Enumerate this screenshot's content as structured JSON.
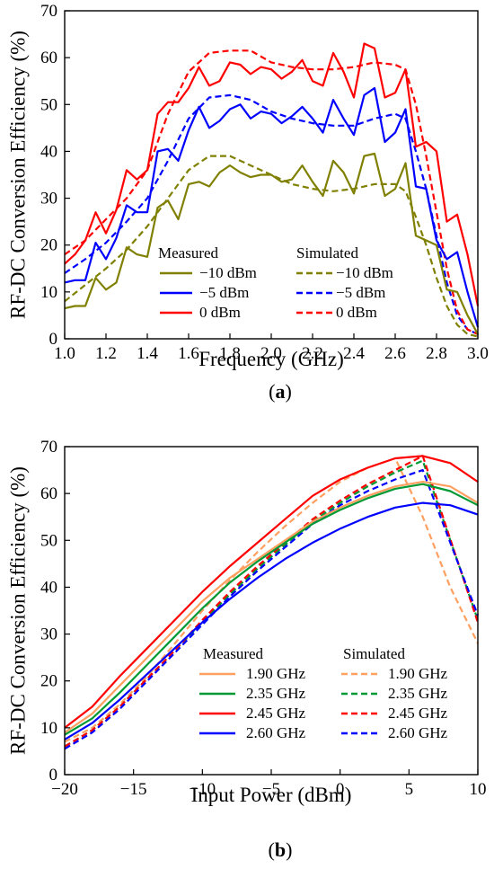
{
  "chart_data": [
    {
      "type": "line",
      "panel_label": "(a)",
      "panel_letter": "a",
      "xlabel": "Frequency  (GHz)",
      "ylabel": "RF-DC Conversion Efficiency (%)",
      "xlim": [
        1.0,
        3.0
      ],
      "ylim": [
        0,
        70
      ],
      "xticks": [
        1.0,
        1.2,
        1.4,
        1.6,
        1.8,
        2.0,
        2.2,
        2.4,
        2.6,
        2.8,
        3.0
      ],
      "xtick_labels": [
        "1.0",
        "1.2",
        "1.4",
        "1.6",
        "1.8",
        "2.0",
        "2.2",
        "2.4",
        "2.6",
        "2.8",
        "3.0"
      ],
      "yticks": [
        0,
        10,
        20,
        30,
        40,
        50,
        60,
        70
      ],
      "ytick_labels": [
        "0",
        "10",
        "20",
        "30",
        "40",
        "50",
        "60",
        "70"
      ],
      "grid": false,
      "legend_position": "lower-center",
      "legend_headers": [
        "Measured",
        "Simulated"
      ],
      "series": [
        {
          "name": "−10 dBm",
          "group": "measured",
          "color": "#808000",
          "dash": false,
          "x": [
            1.0,
            1.05,
            1.1,
            1.15,
            1.2,
            1.25,
            1.3,
            1.35,
            1.4,
            1.45,
            1.5,
            1.55,
            1.6,
            1.65,
            1.7,
            1.75,
            1.8,
            1.85,
            1.9,
            1.95,
            2.0,
            2.05,
            2.1,
            2.15,
            2.2,
            2.25,
            2.3,
            2.35,
            2.4,
            2.45,
            2.5,
            2.55,
            2.6,
            2.65,
            2.7,
            2.75,
            2.8,
            2.85,
            2.9,
            2.95,
            3.0
          ],
          "y": [
            6.5,
            7,
            7,
            13,
            10.5,
            12,
            19.5,
            18,
            17.5,
            28,
            29.5,
            25.5,
            33,
            33.5,
            32.5,
            35.5,
            37,
            35.5,
            34.5,
            35,
            35,
            33.5,
            34,
            37,
            33.5,
            30.5,
            38,
            35.5,
            31,
            39,
            39.5,
            30.5,
            32,
            37.5,
            22,
            21,
            20,
            10.5,
            10,
            5,
            1
          ]
        },
        {
          "name": "−5 dBm",
          "group": "measured",
          "color": "#0000ff",
          "dash": false,
          "x": [
            1.0,
            1.05,
            1.1,
            1.15,
            1.2,
            1.25,
            1.3,
            1.35,
            1.4,
            1.45,
            1.5,
            1.55,
            1.6,
            1.65,
            1.7,
            1.75,
            1.8,
            1.85,
            1.9,
            1.95,
            2.0,
            2.05,
            2.1,
            2.15,
            2.2,
            2.25,
            2.3,
            2.35,
            2.4,
            2.45,
            2.5,
            2.55,
            2.6,
            2.65,
            2.7,
            2.75,
            2.8,
            2.85,
            2.9,
            2.95,
            3.0
          ],
          "y": [
            12,
            12.5,
            12.5,
            20.5,
            17,
            21.5,
            28.5,
            27,
            27,
            40,
            40.5,
            38,
            44.5,
            49.5,
            45,
            46.5,
            49,
            50,
            47,
            48.5,
            48,
            46,
            47.5,
            49.5,
            47,
            44,
            51,
            47,
            43.5,
            52,
            53.5,
            42,
            44,
            49,
            32.5,
            32,
            21,
            17,
            18.5,
            10,
            2.5
          ]
        },
        {
          "name": "0 dBm",
          "group": "measured",
          "color": "#ff0000",
          "dash": false,
          "x": [
            1.0,
            1.05,
            1.1,
            1.15,
            1.2,
            1.25,
            1.3,
            1.35,
            1.4,
            1.45,
            1.5,
            1.55,
            1.6,
            1.65,
            1.7,
            1.75,
            1.8,
            1.85,
            1.9,
            1.95,
            2.0,
            2.05,
            2.1,
            2.15,
            2.2,
            2.25,
            2.3,
            2.35,
            2.4,
            2.45,
            2.5,
            2.55,
            2.6,
            2.65,
            2.7,
            2.75,
            2.8,
            2.85,
            2.9,
            2.95,
            3.0
          ],
          "y": [
            16,
            18,
            21,
            27,
            22.5,
            27.5,
            36,
            34,
            36,
            48,
            50.5,
            50.5,
            53.5,
            58,
            54,
            55,
            59,
            58.5,
            56.5,
            58,
            57.5,
            55.5,
            57,
            59.5,
            55,
            54,
            61,
            57,
            51.5,
            63,
            62,
            51.5,
            52.5,
            57.5,
            41,
            42,
            40,
            25,
            26.5,
            18,
            7
          ]
        },
        {
          "name": "−10 dBm",
          "group": "simulated",
          "color": "#808000",
          "dash": true,
          "x": [
            1.0,
            1.1,
            1.2,
            1.3,
            1.4,
            1.5,
            1.6,
            1.7,
            1.8,
            1.9,
            2.0,
            2.1,
            2.2,
            2.3,
            2.4,
            2.5,
            2.6,
            2.65,
            2.7,
            2.75,
            2.8,
            2.85,
            2.9,
            2.95,
            3.0
          ],
          "y": [
            8,
            11.5,
            15,
            19,
            24,
            30,
            36,
            39,
            39,
            37,
            35,
            33,
            32,
            31.5,
            32,
            33,
            33,
            31.5,
            26,
            20,
            13,
            7,
            3,
            1,
            0.5
          ]
        },
        {
          "name": "−5 dBm",
          "group": "simulated",
          "color": "#0000ff",
          "dash": true,
          "x": [
            1.0,
            1.1,
            1.2,
            1.3,
            1.4,
            1.5,
            1.6,
            1.7,
            1.8,
            1.9,
            2.0,
            2.1,
            2.2,
            2.3,
            2.4,
            2.5,
            2.6,
            2.65,
            2.7,
            2.75,
            2.8,
            2.85,
            2.9,
            2.95,
            3.0
          ],
          "y": [
            14,
            17,
            20.5,
            25,
            30,
            38,
            47,
            51.5,
            52,
            51,
            48.5,
            47,
            46,
            45.5,
            45.5,
            47,
            48,
            47,
            40,
            32,
            22,
            12,
            5,
            2,
            1
          ]
        },
        {
          "name": "0 dBm",
          "group": "simulated",
          "color": "#ff0000",
          "dash": true,
          "x": [
            1.0,
            1.1,
            1.2,
            1.3,
            1.4,
            1.5,
            1.6,
            1.7,
            1.8,
            1.9,
            2.0,
            2.1,
            2.2,
            2.3,
            2.4,
            2.5,
            2.6,
            2.65,
            2.7,
            2.75,
            2.8,
            2.85,
            2.9,
            2.95,
            3.0
          ],
          "y": [
            18,
            21,
            25.5,
            30,
            36,
            48,
            57,
            61,
            61.5,
            61.5,
            59,
            58,
            57.5,
            57.5,
            58,
            59,
            58.5,
            57.5,
            50,
            39,
            27,
            15,
            6,
            2,
            1
          ]
        }
      ]
    },
    {
      "type": "line",
      "panel_label": "(b)",
      "panel_letter": "b",
      "xlabel": "Input Power  (dBm)",
      "ylabel": "RF-DC Conversion Efficiency (%)",
      "xlim": [
        -20,
        10
      ],
      "ylim": [
        0,
        70
      ],
      "xticks": [
        -20,
        -15,
        -10,
        -5,
        0,
        5,
        10
      ],
      "xtick_labels": [
        "−20",
        "−15",
        "−10",
        "−5",
        "0",
        "5",
        "10"
      ],
      "yticks": [
        0,
        10,
        20,
        30,
        40,
        50,
        60,
        70
      ],
      "ytick_labels": [
        "0",
        "10",
        "20",
        "30",
        "40",
        "50",
        "60",
        "70"
      ],
      "grid": false,
      "legend_position": "lower-right",
      "legend_headers": [
        "Measured",
        "Simulated"
      ],
      "series": [
        {
          "name": "1.90 GHz",
          "group": "measured",
          "color": "#ffa060",
          "dash": false,
          "x": [
            -20,
            -18,
            -16,
            -14,
            -12,
            -10,
            -8,
            -6,
            -4,
            -2,
            0,
            2,
            4,
            6,
            8,
            10
          ],
          "y": [
            9,
            13,
            19,
            25,
            31,
            37,
            42,
            46,
            50,
            54,
            57,
            59.5,
            61.5,
            62.5,
            61.5,
            58
          ]
        },
        {
          "name": "2.35 GHz",
          "group": "measured",
          "color": "#009933",
          "dash": false,
          "x": [
            -20,
            -18,
            -16,
            -14,
            -12,
            -10,
            -8,
            -6,
            -4,
            -2,
            0,
            2,
            4,
            6,
            8,
            10
          ],
          "y": [
            8.5,
            12,
            17.5,
            23.5,
            29.5,
            35.5,
            41,
            45.5,
            49.5,
            53.5,
            56.5,
            59,
            61,
            62,
            60.5,
            57.5
          ]
        },
        {
          "name": "2.45 GHz",
          "group": "measured",
          "color": "#ff0000",
          "dash": false,
          "x": [
            -20,
            -18,
            -16,
            -14,
            -12,
            -10,
            -8,
            -6,
            -4,
            -2,
            0,
            2,
            4,
            6,
            8,
            10
          ],
          "y": [
            10,
            14.5,
            21,
            27,
            33,
            39,
            44.5,
            49.5,
            54.5,
            59.5,
            63,
            65.5,
            67.5,
            68,
            66.5,
            62.5
          ]
        },
        {
          "name": "2.60 GHz",
          "group": "measured",
          "color": "#0000ff",
          "dash": false,
          "x": [
            -20,
            -18,
            -16,
            -14,
            -12,
            -10,
            -8,
            -6,
            -4,
            -2,
            0,
            2,
            4,
            6,
            8,
            10
          ],
          "y": [
            7.5,
            11,
            16,
            21.5,
            27,
            32.5,
            37.5,
            42,
            46,
            49.5,
            52.5,
            55,
            57,
            58,
            57.5,
            55.5
          ]
        },
        {
          "name": "1.90 GHz",
          "group": "simulated",
          "color": "#ffa060",
          "dash": true,
          "x": [
            -20,
            -18,
            -16,
            -14,
            -12,
            -10,
            -8,
            -6,
            -4,
            -2,
            0,
            2,
            4,
            6,
            8,
            10
          ],
          "y": [
            7,
            10,
            15,
            21,
            28,
            35,
            41.5,
            47.5,
            53,
            58,
            62.5,
            65.5,
            67.5,
            55,
            40,
            28
          ]
        },
        {
          "name": "2.35 GHz",
          "group": "simulated",
          "color": "#009933",
          "dash": true,
          "x": [
            -20,
            -18,
            -16,
            -14,
            -12,
            -10,
            -8,
            -6,
            -4,
            -2,
            0,
            2,
            4,
            6,
            10
          ],
          "y": [
            6,
            9.5,
            14.5,
            20.5,
            26.5,
            32.5,
            38.5,
            44,
            49,
            54,
            58,
            61.5,
            64.5,
            67,
            33
          ]
        },
        {
          "name": "2.45 GHz",
          "group": "simulated",
          "color": "#ff0000",
          "dash": true,
          "x": [
            -20,
            -18,
            -16,
            -14,
            -12,
            -10,
            -8,
            -6,
            -4,
            -2,
            0,
            2,
            4,
            6,
            10
          ],
          "y": [
            6,
            9.5,
            14.5,
            20.5,
            26.5,
            33,
            39,
            44.5,
            49.5,
            54.5,
            58.5,
            62,
            65,
            68,
            32.5
          ]
        },
        {
          "name": "2.60 GHz",
          "group": "simulated",
          "color": "#0000ff",
          "dash": true,
          "x": [
            -20,
            -18,
            -16,
            -14,
            -12,
            -10,
            -8,
            -6,
            -4,
            -2,
            0,
            2,
            4,
            6,
            10
          ],
          "y": [
            5.5,
            9,
            14,
            20,
            26,
            32,
            38,
            43.5,
            48.5,
            53.5,
            57.5,
            60.5,
            63,
            65,
            34
          ]
        }
      ]
    }
  ]
}
